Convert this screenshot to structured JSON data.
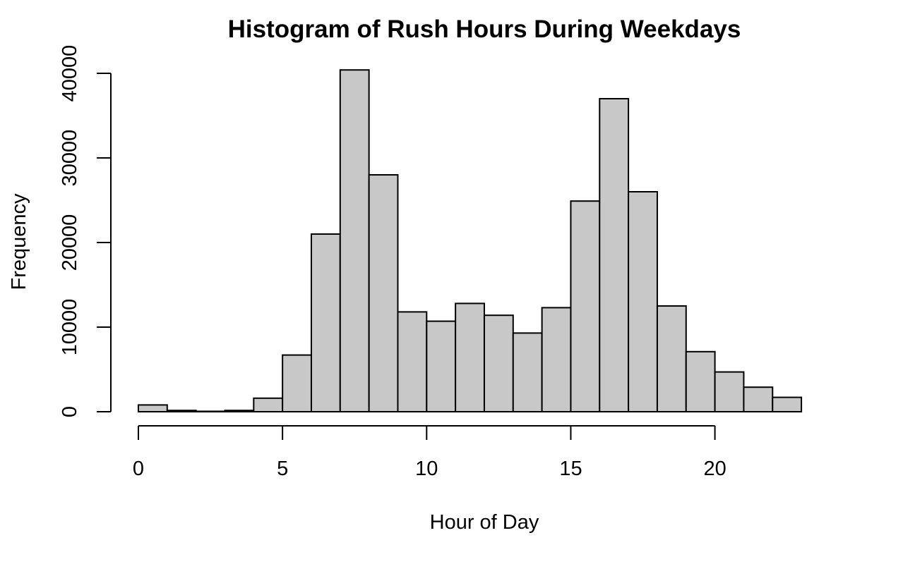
{
  "chart_data": {
    "type": "bar",
    "title": "Histogram of Rush Hours During Weekdays",
    "xlabel": "Hour of Day",
    "ylabel": "Frequency",
    "bin_edges": [
      0,
      1,
      2,
      3,
      4,
      5,
      6,
      7,
      8,
      9,
      10,
      11,
      12,
      13,
      14,
      15,
      16,
      17,
      18,
      19,
      20,
      21,
      22,
      23
    ],
    "values": [
      800,
      150,
      50,
      150,
      1600,
      6700,
      21000,
      40400,
      28000,
      11800,
      10700,
      12800,
      11400,
      9300,
      12300,
      24900,
      37000,
      26000,
      12500,
      7100,
      4700,
      2900,
      1700
    ],
    "xticks": [
      0,
      5,
      10,
      15,
      20
    ],
    "xtick_labels": [
      "0",
      "5",
      "10",
      "15",
      "20"
    ],
    "yticks": [
      0,
      10000,
      20000,
      30000,
      40000
    ],
    "ytick_labels": [
      "0",
      "10000",
      "20000",
      "30000",
      "40000"
    ],
    "xlim": [
      0,
      23
    ],
    "ylim": [
      0,
      40000
    ],
    "bar_color": "#c8c8c8",
    "edge_color": "#000000",
    "grid": false,
    "legend": "none"
  }
}
